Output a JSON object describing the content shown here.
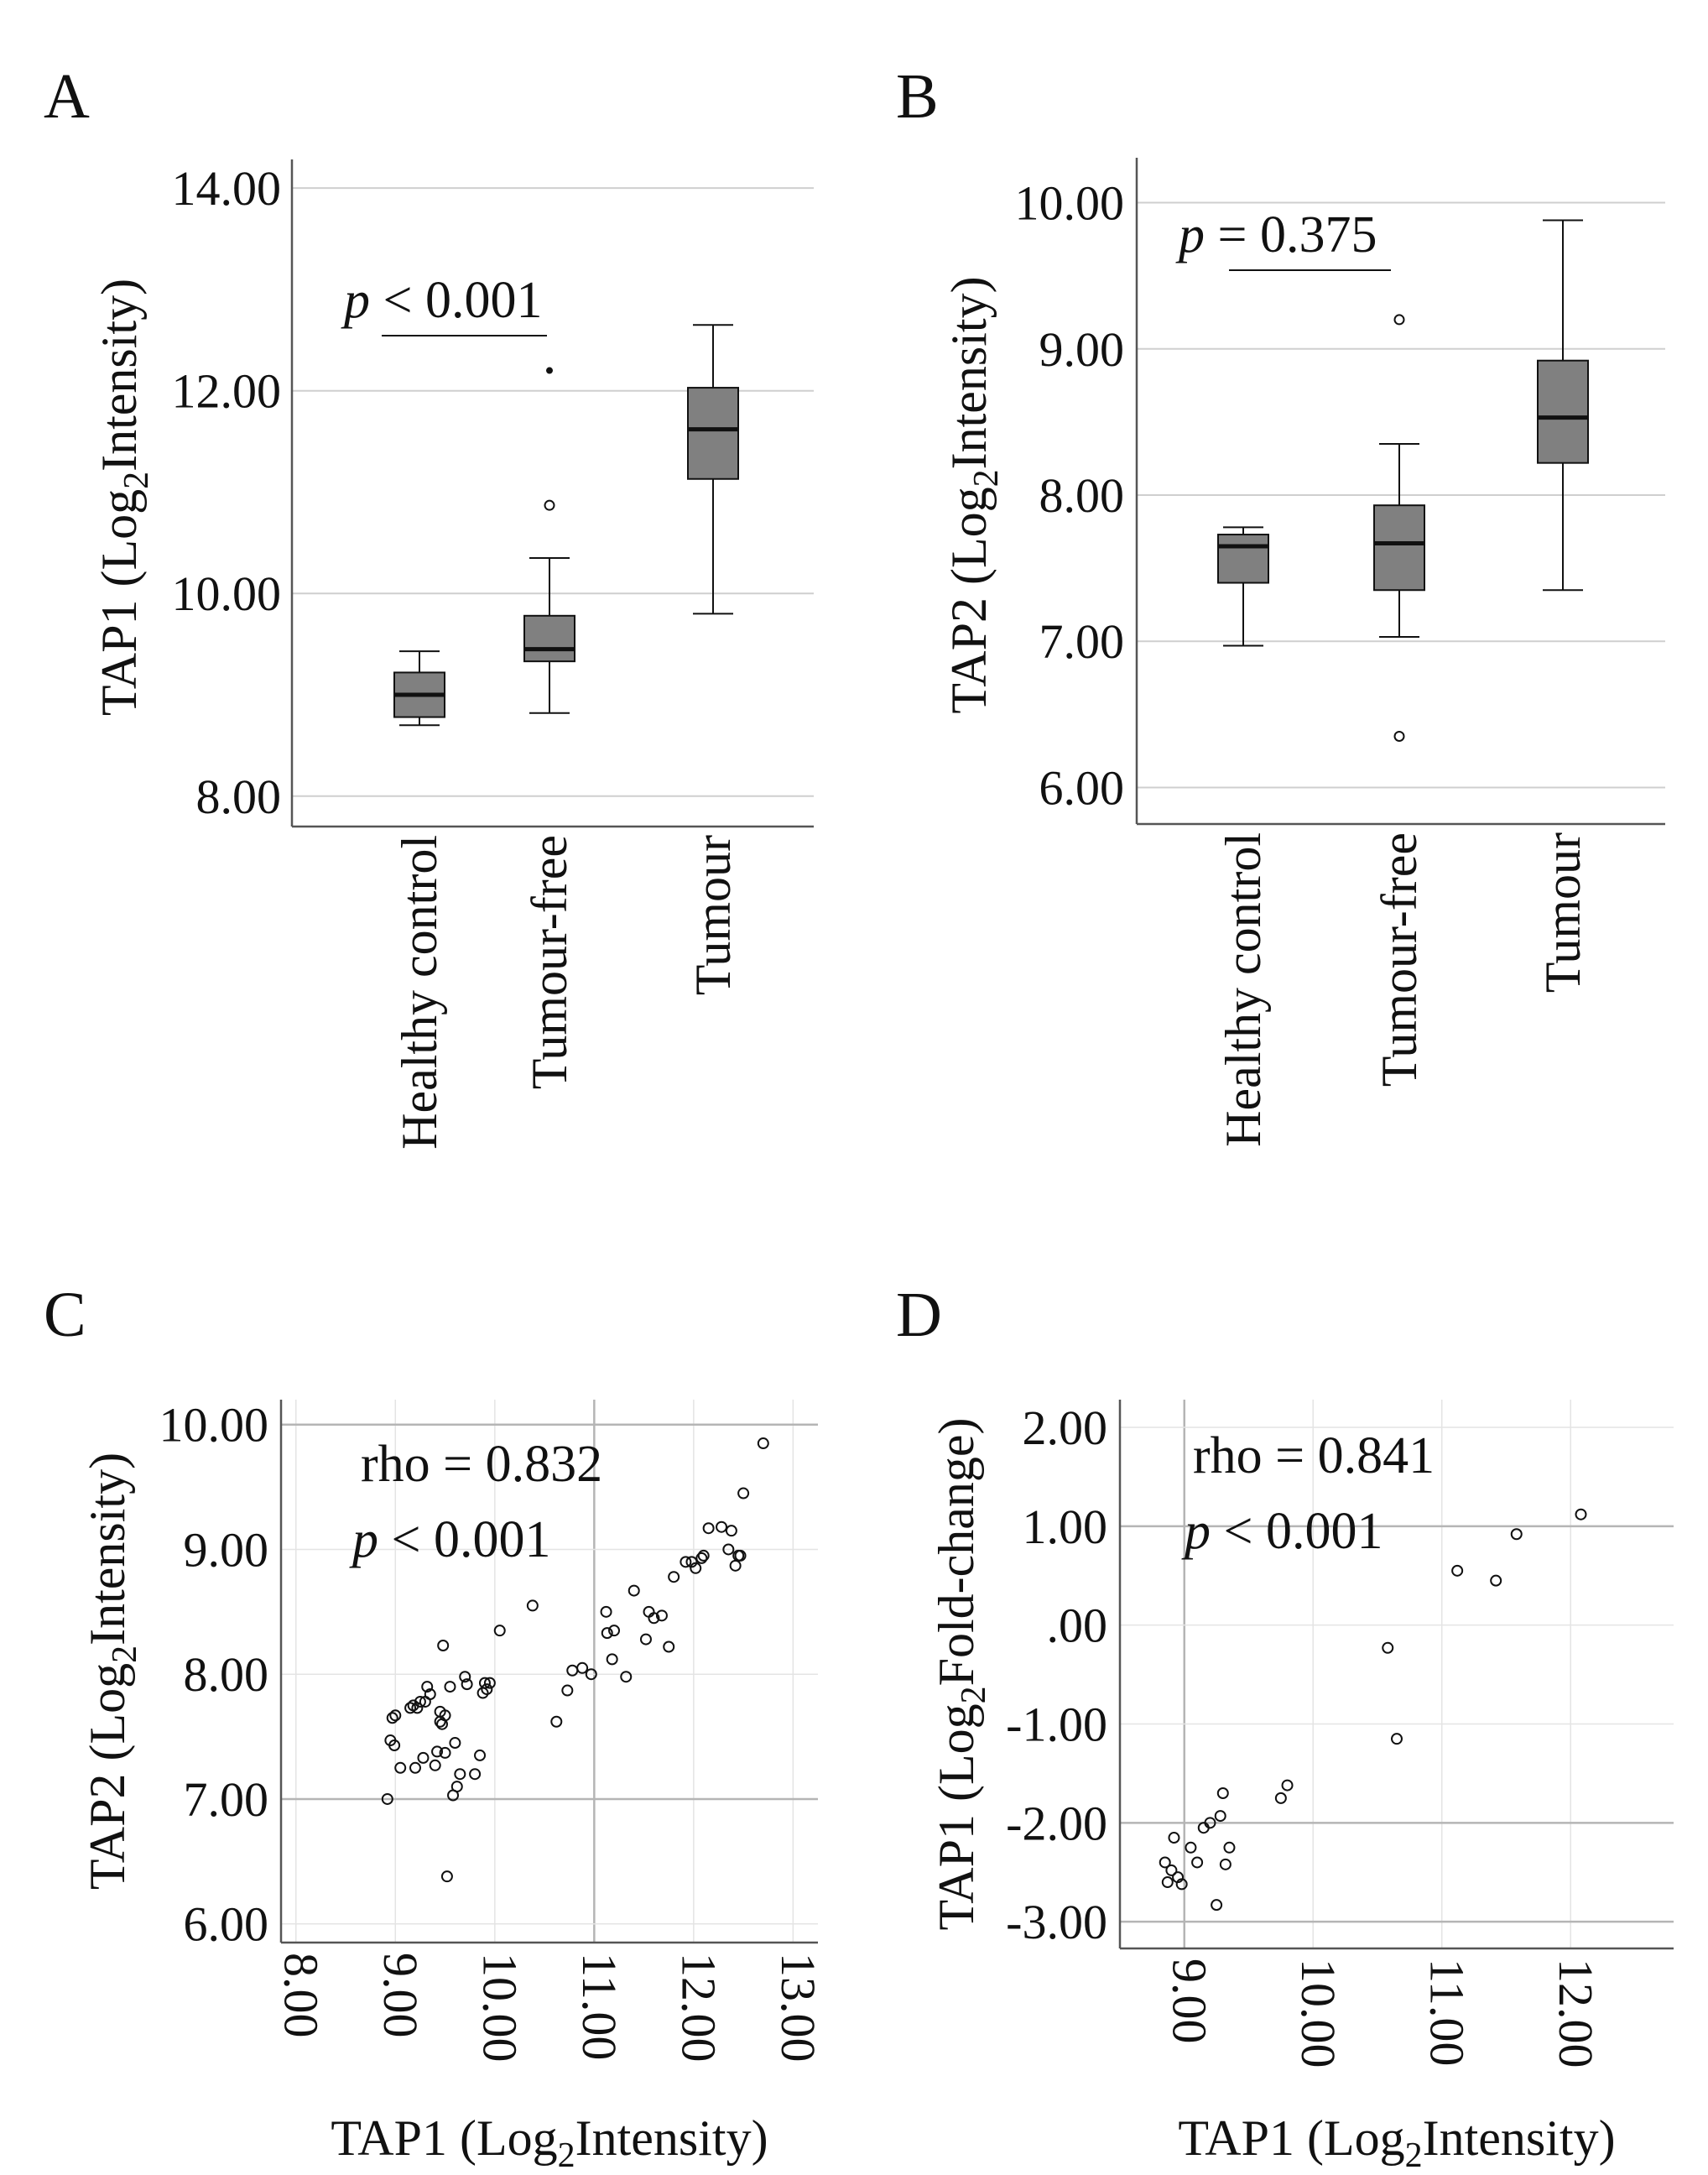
{
  "figure": {
    "panels": [
      "A",
      "B",
      "C",
      "D"
    ]
  },
  "colors": {
    "box_fill": "#808080",
    "grid": "#cfcfcf",
    "axis": "#555555",
    "ink": "#111111"
  },
  "chart_data": [
    {
      "panel": "A",
      "type": "box",
      "title": "",
      "ylabel": "TAP1 (Log₂Intensity)",
      "ylabel_parts": [
        "TAP1 (Log",
        "2",
        "Intensity)"
      ],
      "xlabel": "",
      "ylim": [
        7.7,
        14.2
      ],
      "yticks": [
        8,
        10,
        12,
        14
      ],
      "ytick_labels": [
        "8.00",
        "10.00",
        "12.00",
        "14.00"
      ],
      "categories": [
        "Healthy control",
        "Tumour-free",
        "Tumour"
      ],
      "boxes": [
        {
          "category": "Healthy control",
          "min": 8.7,
          "q1": 8.78,
          "median": 9.0,
          "q3": 9.22,
          "max": 9.43,
          "outliers": []
        },
        {
          "category": "Tumour-free",
          "min": 8.82,
          "q1": 9.33,
          "median": 9.45,
          "q3": 9.78,
          "max": 10.35,
          "outliers": [
            10.87
          ],
          "extremes": [
            12.2
          ]
        },
        {
          "category": "Tumour",
          "min": 9.8,
          "q1": 11.13,
          "median": 11.62,
          "q3": 12.03,
          "max": 12.65,
          "outliers": []
        }
      ],
      "annotation": {
        "p_symbol": "p",
        "text": " < 0.001",
        "between": [
          "Healthy control",
          "Tumour-free"
        ],
        "level": 12.65
      }
    },
    {
      "panel": "B",
      "type": "box",
      "title": "",
      "ylabel": "TAP2 (Log₂Intensity)",
      "ylabel_parts": [
        "TAP2 (Log",
        "2",
        "Intensity)"
      ],
      "xlabel": "",
      "ylim": [
        5.75,
        10.25
      ],
      "yticks": [
        6,
        7,
        8,
        9,
        10
      ],
      "ytick_labels": [
        "6.00",
        "7.00",
        "8.00",
        "9.00",
        "10.00"
      ],
      "categories": [
        "Healthy control",
        "Tumour-free",
        "Tumour"
      ],
      "boxes": [
        {
          "category": "Healthy control",
          "min": 6.97,
          "q1": 7.4,
          "median": 7.65,
          "q3": 7.73,
          "max": 7.78,
          "outliers": []
        },
        {
          "category": "Tumour-free",
          "min": 7.03,
          "q1": 7.35,
          "median": 7.67,
          "q3": 7.93,
          "max": 8.35,
          "outliers": [
            6.35,
            9.2
          ]
        },
        {
          "category": "Tumour",
          "min": 7.35,
          "q1": 8.22,
          "median": 8.53,
          "q3": 8.92,
          "max": 9.88,
          "outliers": []
        }
      ],
      "annotation": {
        "p_symbol": "p",
        "text": " = 0.375",
        "between": [
          "Healthy control",
          "Tumour-free"
        ],
        "level": 9.5
      }
    },
    {
      "panel": "C",
      "type": "scatter",
      "title": "",
      "xlabel": "TAP1 (Log₂Intensity)",
      "xlabel_parts": [
        "TAP1 (Log",
        "2",
        "Intensity)"
      ],
      "ylabel": "TAP2 (Log₂Intensity)",
      "ylabel_parts": [
        "TAP2 (Log",
        "2",
        "Intensity)"
      ],
      "xlim": [
        7.85,
        13.25
      ],
      "ylim": [
        5.85,
        10.2
      ],
      "xticks": [
        8,
        9,
        10,
        11,
        12,
        13
      ],
      "xtick_labels": [
        "8.00",
        "9.00",
        "10.00",
        "11.00",
        "12.00",
        "13.00"
      ],
      "yticks": [
        6,
        7,
        8,
        9,
        10
      ],
      "ytick_labels": [
        "6.00",
        "7.00",
        "8.00",
        "9.00",
        "10.00"
      ],
      "major_gridlines": {
        "x": [
          11
        ],
        "y": [
          7,
          10
        ]
      },
      "annotation": {
        "line1": "rho = 0.832",
        "p_symbol": "p",
        "line2": " < 0.001"
      },
      "x": [
        8.92,
        8.95,
        8.97,
        8.99,
        9.0,
        9.05,
        9.15,
        9.18,
        9.2,
        9.22,
        9.25,
        9.28,
        9.3,
        9.32,
        9.35,
        9.4,
        9.42,
        9.45,
        9.45,
        9.47,
        9.48,
        9.5,
        9.5,
        9.52,
        9.55,
        9.58,
        9.6,
        9.62,
        9.65,
        9.7,
        9.72,
        9.8,
        9.85,
        9.88,
        9.9,
        9.92,
        9.95,
        10.05,
        10.38,
        10.62,
        10.73,
        10.78,
        10.88,
        10.97,
        11.12,
        11.13,
        11.18,
        11.2,
        11.32,
        11.4,
        11.52,
        11.55,
        11.6,
        11.68,
        11.75,
        11.8,
        11.92,
        11.98,
        12.02,
        12.08,
        12.1,
        12.15,
        12.28,
        12.35,
        12.38,
        12.42,
        12.45,
        12.47,
        12.5,
        12.7
      ],
      "y": [
        7.0,
        7.47,
        7.65,
        7.43,
        7.67,
        7.25,
        7.73,
        7.75,
        7.25,
        7.73,
        7.78,
        7.33,
        7.78,
        7.9,
        7.84,
        7.27,
        7.38,
        7.62,
        7.7,
        7.6,
        8.23,
        7.37,
        7.67,
        6.38,
        7.9,
        7.03,
        7.45,
        7.1,
        7.2,
        7.98,
        7.92,
        7.2,
        7.35,
        7.85,
        7.93,
        7.88,
        7.93,
        8.35,
        8.55,
        7.62,
        7.87,
        8.03,
        8.05,
        8.0,
        8.5,
        8.33,
        8.12,
        8.35,
        7.98,
        8.67,
        8.28,
        8.5,
        8.45,
        8.47,
        8.22,
        8.78,
        8.9,
        8.9,
        8.85,
        8.93,
        8.95,
        9.17,
        9.18,
        9.0,
        9.15,
        8.87,
        8.95,
        8.95,
        9.45,
        9.85
      ]
    },
    {
      "panel": "D",
      "type": "scatter",
      "title": "",
      "xlabel": "TAP1 (Log₂Intensity)",
      "xlabel_parts": [
        "TAP1 (Log",
        "2",
        "Intensity)"
      ],
      "ylabel": "TAP1 (Log₂Fold-change)",
      "ylabel_parts": [
        "TAP1 (Log",
        "2",
        "Fold-change)"
      ],
      "xlim": [
        8.5,
        12.8
      ],
      "ylim": [
        -3.27,
        2.28
      ],
      "xticks": [
        9,
        10,
        11,
        12
      ],
      "xtick_labels": [
        "9.00",
        "10.00",
        "11.00",
        "12.00"
      ],
      "yticks": [
        -3,
        -2,
        -1,
        0,
        1,
        2
      ],
      "ytick_labels": [
        "-3.00",
        "-2.00",
        "-1.00",
        ".00",
        "1.00",
        "2.00"
      ],
      "major_gridlines": {
        "x": [
          9
        ],
        "y": [
          -3,
          -2,
          1
        ]
      },
      "annotation": {
        "line1": "rho = 0.841",
        "p_symbol": "p",
        "line2": " < 0.001"
      },
      "x": [
        8.85,
        8.87,
        8.9,
        8.92,
        8.95,
        8.98,
        9.05,
        9.1,
        9.15,
        9.2,
        9.25,
        9.28,
        9.3,
        9.32,
        9.35,
        9.75,
        9.8,
        10.58,
        10.65,
        11.12,
        11.42,
        11.58,
        12.08
      ],
      "y": [
        -2.4,
        -2.6,
        -2.48,
        -2.15,
        -2.55,
        -2.62,
        -2.25,
        -2.4,
        -2.05,
        -2.0,
        -2.83,
        -1.93,
        -1.7,
        -2.42,
        -2.25,
        -1.75,
        -1.62,
        -0.23,
        -1.15,
        0.55,
        0.45,
        0.92,
        1.12
      ]
    }
  ]
}
